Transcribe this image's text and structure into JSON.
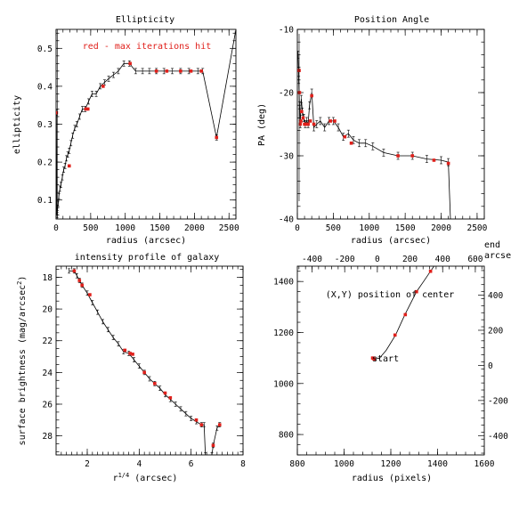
{
  "colors": {
    "highlight": "#e0201b",
    "ink": "#000000"
  },
  "chart_data": [
    {
      "id": "ellipticity",
      "type": "line",
      "title": "Ellipticity",
      "xlabel": "radius (arcsec)",
      "ylabel": "ellipticity",
      "xlim": [
        0,
        2600
      ],
      "ylim": [
        0.05,
        0.55
      ],
      "xticks": [
        0,
        500,
        1000,
        1500,
        2000,
        2500
      ],
      "yticks": [
        0.1,
        0.2,
        0.3,
        0.4,
        0.5
      ],
      "annotation": "red - max iterations hit",
      "series": [
        {
          "x": [
            5,
            10,
            15,
            20,
            30,
            40,
            55,
            70,
            90,
            110,
            130,
            150,
            170,
            190,
            215,
            240,
            270,
            300,
            340,
            380,
            420,
            470,
            520,
            580,
            640,
            700,
            760,
            830,
            900,
            980,
            1060,
            1150,
            1250,
            1350,
            1450,
            1560,
            1680,
            1800,
            1920,
            2050,
            2120,
            2320,
            2600
          ],
          "y": [
            0.33,
            0.07,
            0.06,
            0.08,
            0.09,
            0.11,
            0.13,
            0.14,
            0.16,
            0.18,
            0.19,
            0.21,
            0.22,
            0.23,
            0.25,
            0.27,
            0.29,
            0.3,
            0.32,
            0.34,
            0.34,
            0.36,
            0.38,
            0.38,
            0.4,
            0.41,
            0.42,
            0.43,
            0.44,
            0.46,
            0.46,
            0.44,
            0.44,
            0.44,
            0.44,
            0.44,
            0.44,
            0.44,
            0.44,
            0.44,
            0.44,
            0.265,
            0.55
          ],
          "red_x": [
            5,
            190,
            430,
            460,
            680,
            1070,
            1450,
            1600,
            1800,
            1950,
            2100,
            2320
          ],
          "red_y": [
            0.33,
            0.19,
            0.34,
            0.34,
            0.4,
            0.46,
            0.44,
            0.44,
            0.44,
            0.44,
            0.44,
            0.265
          ]
        }
      ]
    },
    {
      "id": "position-angle",
      "type": "line",
      "title": "Position Angle",
      "xlabel": "radius (arcsec)",
      "ylabel": "PA (deg)",
      "xlim": [
        0,
        2600
      ],
      "ylim": [
        -40,
        -10
      ],
      "xticks": [
        0,
        500,
        1000,
        1500,
        2000,
        2500
      ],
      "yticks": [
        -40,
        -30,
        -20,
        -10
      ],
      "series": [
        {
          "x": [
            10,
            20,
            30,
            40,
            55,
            70,
            90,
            110,
            130,
            150,
            170,
            200,
            230,
            270,
            320,
            380,
            440,
            500,
            570,
            640,
            710,
            780,
            860,
            950,
            1050,
            1200,
            1400,
            1600,
            1800,
            2000,
            2100,
            2130
          ],
          "y": [
            -14,
            -18,
            -22,
            -25,
            -21,
            -23,
            -24,
            -25,
            -24.5,
            -25,
            -22,
            -20,
            -25.5,
            -25,
            -24.5,
            -25.5,
            -24.5,
            -24.5,
            -25.5,
            -27,
            -26.5,
            -27.5,
            -28,
            -28,
            -28.5,
            -29.5,
            -30,
            -30,
            -30.5,
            -30.7,
            -31,
            -40
          ]
        }
      ],
      "red_x": [
        25,
        30,
        40,
        50,
        60,
        80,
        100,
        120,
        150,
        180,
        200,
        230,
        460,
        520,
        660,
        750,
        1400,
        1600,
        1900,
        2100
      ],
      "red_y": [
        -16.5,
        -20,
        -25,
        -24.5,
        -23,
        -24,
        -25,
        -25,
        -25,
        -24.5,
        -20.5,
        -25,
        -24.5,
        -24.5,
        -27,
        -28,
        -30,
        -30,
        -30.7,
        -31.2
      ]
    },
    {
      "id": "intensity-profile",
      "type": "line",
      "title": "intensity profile of galaxy",
      "xlabel": "r^{1/4} (arcsec)",
      "ylabel": "surface brightness (mag/arcsec²)",
      "xlim": [
        0.8,
        8
      ],
      "ylim": [
        29.2,
        17.3
      ],
      "xticks": [
        2,
        4,
        6,
        8
      ],
      "yticks": [
        18,
        20,
        22,
        24,
        26,
        28
      ],
      "series": [
        {
          "x": [
            1.3,
            1.5,
            1.6,
            1.7,
            1.8,
            2.0,
            2.2,
            2.4,
            2.6,
            2.8,
            3.0,
            3.2,
            3.4,
            3.6,
            3.8,
            4.0,
            4.2,
            4.4,
            4.6,
            4.8,
            5.0,
            5.2,
            5.4,
            5.6,
            5.8,
            6.0,
            6.2,
            6.4,
            6.5,
            6.55
          ],
          "y": [
            17.6,
            17.6,
            17.9,
            18.2,
            18.5,
            19.0,
            19.6,
            20.2,
            20.8,
            21.3,
            21.8,
            22.2,
            22.7,
            22.8,
            23.2,
            23.6,
            24.0,
            24.4,
            24.7,
            25.0,
            25.4,
            25.7,
            26.0,
            26.3,
            26.6,
            26.9,
            27.1,
            27.3,
            27.3,
            29.2
          ]
        },
        {
          "x": [
            6.8,
            6.85,
            7.0,
            7.1
          ],
          "y": [
            29.2,
            28.6,
            27.5,
            27.3
          ]
        }
      ],
      "red_x": [
        1.5,
        1.7,
        1.8,
        2.1,
        3.45,
        3.65,
        3.75,
        4.2,
        4.6,
        5.0,
        5.2,
        6.2,
        6.4,
        6.85,
        7.1
      ],
      "red_y": [
        17.6,
        18.2,
        18.5,
        19.1,
        22.6,
        22.8,
        22.85,
        24.0,
        24.7,
        25.3,
        25.6,
        27.0,
        27.3,
        28.6,
        27.3
      ]
    },
    {
      "id": "center-position",
      "type": "line",
      "title": "(X,Y) position of center",
      "xlabel": "radius (pixels)",
      "xlim": [
        800,
        1600
      ],
      "ylim": [
        720,
        1460
      ],
      "xticks": [
        800,
        1000,
        1200,
        1400,
        1600
      ],
      "yticks": [
        800,
        1000,
        1200,
        1400
      ],
      "top_xticks": [
        -400,
        -200,
        0,
        200,
        400,
        600
      ],
      "top_xlim": [
        -490,
        655
      ],
      "top_axis_label": "end arcsec",
      "right_yticks": [
        -400,
        -200,
        0,
        200,
        400
      ],
      "right_ylim": [
        -510,
        565
      ],
      "start_label": "start",
      "series": [
        {
          "x": [
            1120,
            1128,
            1138,
            1150,
            1180,
            1220,
            1260,
            1310,
            1340,
            1370,
            1400
          ],
          "y": [
            1100,
            1096,
            1100,
            1098,
            1130,
            1190,
            1270,
            1360,
            1400,
            1440,
            1480
          ]
        }
      ],
      "red_x": [
        1122,
        1128,
        1218,
        1262,
        1310,
        1370
      ],
      "red_y": [
        1100,
        1096,
        1190,
        1270,
        1360,
        1440
      ]
    }
  ]
}
